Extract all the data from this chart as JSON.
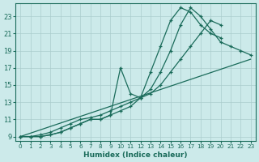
{
  "xlabel": "Humidex (Indice chaleur)",
  "bg_color": "#cceaea",
  "grid_color": "#aacccc",
  "line_color": "#1a6b5a",
  "xlim": [
    -0.5,
    23.5
  ],
  "ylim": [
    8.5,
    24.5
  ],
  "xticks": [
    0,
    1,
    2,
    3,
    4,
    5,
    6,
    7,
    8,
    9,
    10,
    11,
    12,
    13,
    14,
    15,
    16,
    17,
    18,
    19,
    20,
    21,
    22,
    23
  ],
  "yticks": [
    9,
    11,
    13,
    15,
    17,
    19,
    21,
    23
  ],
  "series": [
    {
      "x": [
        0,
        23
      ],
      "y": [
        9.0,
        18.0
      ],
      "marker": false
    },
    {
      "x": [
        0,
        1,
        2,
        3,
        4,
        5,
        6,
        7,
        8,
        9,
        10,
        11,
        12,
        13,
        14,
        15,
        16,
        17,
        18,
        19,
        20
      ],
      "y": [
        9.0,
        9.0,
        9.2,
        9.5,
        10.0,
        10.5,
        11.0,
        11.2,
        11.5,
        12.0,
        12.5,
        13.0,
        13.5,
        14.0,
        15.0,
        16.5,
        18.0,
        19.5,
        21.0,
        22.5,
        22.0
      ],
      "marker": true
    },
    {
      "x": [
        0,
        1,
        2,
        3,
        4,
        5,
        6,
        7,
        8,
        9,
        10,
        11,
        12,
        13,
        14,
        15,
        16,
        17,
        18,
        19,
        20,
        21,
        22,
        23
      ],
      "y": [
        9.0,
        9.0,
        9.0,
        9.2,
        9.5,
        10.0,
        10.5,
        11.0,
        11.0,
        11.5,
        17.0,
        14.0,
        13.5,
        14.5,
        16.5,
        19.0,
        22.0,
        24.0,
        23.0,
        21.5,
        20.0,
        19.5,
        19.0,
        18.5
      ],
      "marker": true
    },
    {
      "x": [
        0,
        1,
        2,
        3,
        4,
        5,
        6,
        7,
        8,
        9,
        10,
        11,
        12,
        13,
        14,
        15,
        16,
        17,
        18,
        19,
        20
      ],
      "y": [
        9.0,
        9.0,
        9.0,
        9.2,
        9.5,
        10.0,
        10.5,
        11.0,
        11.0,
        11.5,
        12.0,
        12.5,
        13.5,
        16.5,
        19.5,
        22.5,
        24.0,
        23.5,
        22.0,
        21.0,
        20.5
      ],
      "marker": true
    }
  ]
}
